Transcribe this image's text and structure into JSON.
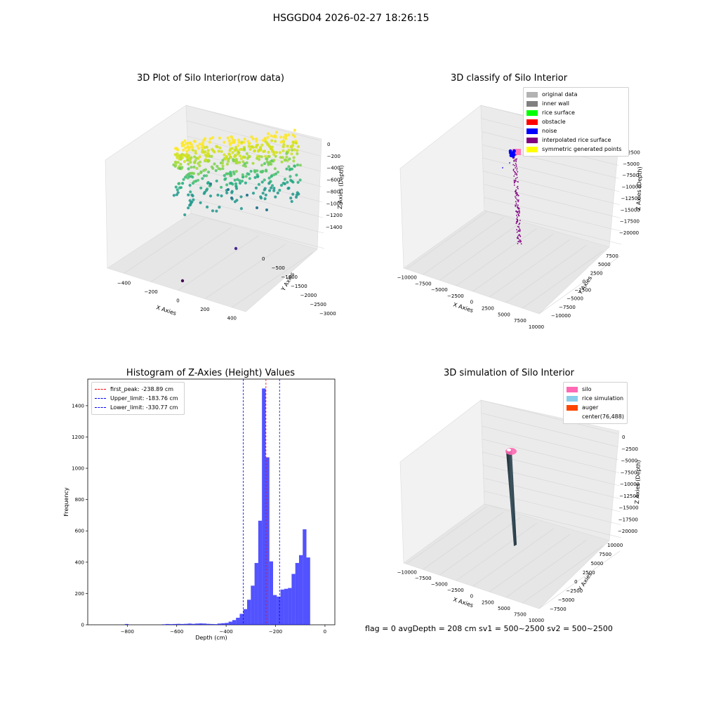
{
  "suptitle": "HSGGD04 2026-02-27 18:26:15",
  "panels": {
    "raw": {
      "title": "3D Plot of Silo Interior(row data)",
      "xlabel": "X Axies",
      "ylabel": "Y Axies",
      "zlabel": "Z Axies (Depth)",
      "xticks": [
        "−400",
        "−200",
        "0",
        "200",
        "400"
      ],
      "yticks": [
        "0",
        "−500",
        "−1000",
        "−1500",
        "−2000",
        "−2500",
        "−3000"
      ],
      "zticks": [
        "0",
        "−200",
        "−400",
        "−600",
        "−800",
        "−1000",
        "−1200",
        "−1400"
      ]
    },
    "classify": {
      "title": "3D classify of Silo Interior",
      "xlabel": "X Axies",
      "ylabel": "Y Axies",
      "zlabel": "Z Axies (Depth)",
      "xticks": [
        "−10000",
        "−7500",
        "−5000",
        "−2500",
        "0",
        "2500",
        "5000",
        "7500",
        "10000"
      ],
      "yticks": [
        "7500",
        "5000",
        "2500",
        "0",
        "−2500",
        "−5000",
        "−7500",
        "−10000"
      ],
      "zticks": [
        "0",
        "−2500",
        "−5000",
        "−7500",
        "−10000",
        "−12500",
        "−15000",
        "−17500",
        "−20000"
      ],
      "legend": [
        {
          "label": "original data",
          "color": "#b2b2b2"
        },
        {
          "label": "inner wall",
          "color": "#808080"
        },
        {
          "label": "rice surface",
          "color": "#00ff00"
        },
        {
          "label": "obstacle",
          "color": "#ff0000"
        },
        {
          "label": "noise",
          "color": "#0000ff"
        },
        {
          "label": "interpolated rice surface",
          "color": "#800080"
        },
        {
          "label": "symmetric generated points",
          "color": "#ffff00"
        }
      ]
    },
    "sim": {
      "title": "3D simulation of Silo Interior",
      "xlabel": "X Axies",
      "ylabel": "Y Axies",
      "zlabel": "Z Axies (Depth)",
      "xticks": [
        "−10000",
        "−7500",
        "−5000",
        "−2500",
        "0",
        "2500",
        "5000",
        "7500",
        "10000"
      ],
      "yticks": [
        "10000",
        "7500",
        "5000",
        "2500",
        "0",
        "−2500",
        "−5000",
        "−7500"
      ],
      "zticks": [
        "0",
        "−2500",
        "−5000",
        "−7500",
        "−10000",
        "−12500",
        "−15000",
        "−17500",
        "−20000"
      ],
      "legend": [
        {
          "label": "silo",
          "color": "#ff69b4"
        },
        {
          "label": "rice simulation",
          "color": "#87ceeb"
        },
        {
          "label": "auger",
          "color": "#ff4500"
        },
        {
          "label": "center(76,488)",
          "color": "#ffffff"
        }
      ]
    }
  },
  "footer": "flag = 0     avgDepth = 208 cm  sv1 = 500~2500  sv2 = 500~2500",
  "chart_data": [
    {
      "type": "bar",
      "title": "Histogram of Z-Axies (Height) Values",
      "xlabel": "Depth (cm)",
      "ylabel": "Frequency",
      "xlim": [
        -960,
        40
      ],
      "ylim": [
        0,
        1570
      ],
      "xticks": [
        -800,
        -600,
        -400,
        -200,
        0
      ],
      "yticks": [
        0,
        200,
        400,
        600,
        800,
        1000,
        1200,
        1400
      ],
      "bin_width": 15,
      "color": "#0000ff",
      "bins": [
        {
          "x": -810,
          "value": 5
        },
        {
          "x": -660,
          "value": 3
        },
        {
          "x": -645,
          "value": 5
        },
        {
          "x": -630,
          "value": 4
        },
        {
          "x": -615,
          "value": 5
        },
        {
          "x": -600,
          "value": 6
        },
        {
          "x": -585,
          "value": 5
        },
        {
          "x": -570,
          "value": 6
        },
        {
          "x": -555,
          "value": 8
        },
        {
          "x": -540,
          "value": 6
        },
        {
          "x": -525,
          "value": 8
        },
        {
          "x": -510,
          "value": 9
        },
        {
          "x": -495,
          "value": 8
        },
        {
          "x": -480,
          "value": 6
        },
        {
          "x": -465,
          "value": 5
        },
        {
          "x": -450,
          "value": 4
        },
        {
          "x": -435,
          "value": 8
        },
        {
          "x": -420,
          "value": 10
        },
        {
          "x": -405,
          "value": 12
        },
        {
          "x": -390,
          "value": 20
        },
        {
          "x": -375,
          "value": 30
        },
        {
          "x": -360,
          "value": 45
        },
        {
          "x": -345,
          "value": 70
        },
        {
          "x": -330,
          "value": 100
        },
        {
          "x": -315,
          "value": 160
        },
        {
          "x": -300,
          "value": 250
        },
        {
          "x": -285,
          "value": 395
        },
        {
          "x": -270,
          "value": 665
        },
        {
          "x": -255,
          "value": 1510
        },
        {
          "x": -240,
          "value": 1070
        },
        {
          "x": -225,
          "value": 405
        },
        {
          "x": -210,
          "value": 190
        },
        {
          "x": -195,
          "value": 180
        },
        {
          "x": -180,
          "value": 225
        },
        {
          "x": -165,
          "value": 230
        },
        {
          "x": -150,
          "value": 235
        },
        {
          "x": -135,
          "value": 325
        },
        {
          "x": -120,
          "value": 395
        },
        {
          "x": -105,
          "value": 445
        },
        {
          "x": -90,
          "value": 610
        },
        {
          "x": -75,
          "value": 430
        }
      ],
      "vlines": [
        {
          "label": "first_peak: -238.89 cm",
          "x": -238.89,
          "color": "#ff0000"
        },
        {
          "label": "Upper_limit: -183.76 cm",
          "x": -183.76,
          "color": "#0000ff"
        },
        {
          "label": "Lower_limit: -330.77 cm",
          "x": -330.77,
          "color": "#0000ff"
        }
      ],
      "legend_position": "upper left"
    }
  ]
}
